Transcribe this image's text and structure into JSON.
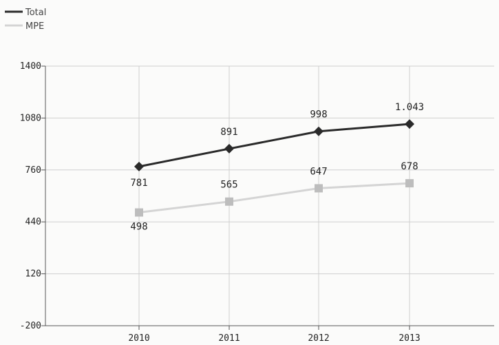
{
  "chart_data": {
    "type": "line",
    "categories": [
      "2010",
      "2011",
      "2012",
      "2013"
    ],
    "series": [
      {
        "name": "Total",
        "values": [
          781,
          891,
          998,
          1043
        ],
        "labels": [
          "781",
          "891",
          "998",
          "1.043"
        ],
        "color": "#2a2a2a",
        "marker": "diamond"
      },
      {
        "name": "MPE",
        "values": [
          498,
          565,
          647,
          678
        ],
        "labels": [
          "498",
          "565",
          "647",
          "678"
        ],
        "color": "#d4d4d4",
        "marker": "square"
      }
    ],
    "yticks": [
      1400,
      1080,
      760,
      440,
      120,
      -200
    ],
    "ylim": [
      -200,
      1400
    ],
    "grid": true,
    "legend": "top-left",
    "title": "",
    "xlabel": "",
    "ylabel": ""
  }
}
